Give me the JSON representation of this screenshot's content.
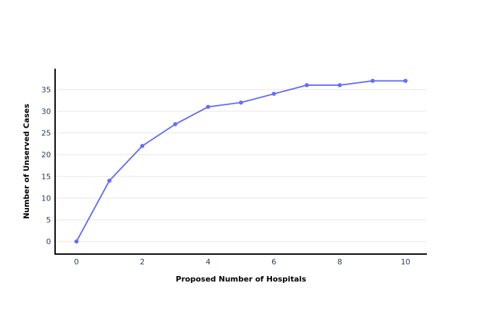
{
  "chart_data": {
    "type": "line",
    "title": "",
    "xlabel": "Proposed Number of Hospitals",
    "ylabel": "Number of Unserved Cases",
    "x": [
      0,
      1,
      2,
      3,
      4,
      5,
      6,
      7,
      8,
      9,
      10
    ],
    "series": [
      {
        "values": [
          0,
          14,
          22,
          27,
          31,
          32,
          34,
          36,
          36,
          37,
          37
        ]
      }
    ],
    "xlim": [
      -0.65,
      10.65
    ],
    "ylim": [
      -2.9,
      39.8
    ],
    "xticks": [
      0,
      2,
      4,
      6,
      8,
      10
    ],
    "yticks": [
      0,
      5,
      10,
      15,
      20,
      25,
      30,
      35
    ],
    "grid": {
      "x": false,
      "y": true
    },
    "colors": {
      "line": "#636efa",
      "grid": "#e6e6e6",
      "axis": "#000000",
      "tick_text": "#2a3f5f"
    }
  }
}
